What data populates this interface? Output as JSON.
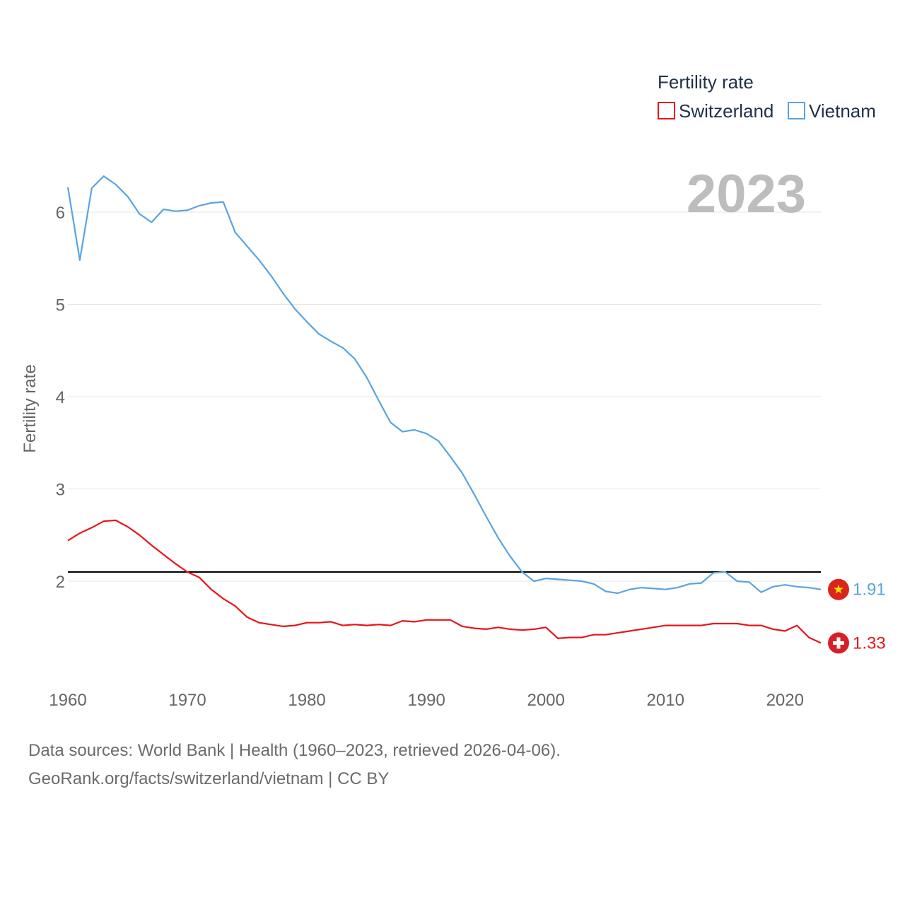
{
  "chart_data": {
    "type": "line",
    "legend_title": "Fertility rate",
    "ylabel": "Fertility rate",
    "year_watermark": "2023",
    "xlim": [
      1960,
      2023
    ],
    "ylim": [
      1.0,
      6.6
    ],
    "yticks": [
      2,
      3,
      4,
      5,
      6
    ],
    "xticks": [
      1960,
      1970,
      1980,
      1990,
      2000,
      2010,
      2020
    ],
    "reference_line": 2.1,
    "x": [
      1960,
      1961,
      1962,
      1963,
      1964,
      1965,
      1966,
      1967,
      1968,
      1969,
      1970,
      1971,
      1972,
      1973,
      1974,
      1975,
      1976,
      1977,
      1978,
      1979,
      1980,
      1981,
      1982,
      1983,
      1984,
      1985,
      1986,
      1987,
      1988,
      1989,
      1990,
      1991,
      1992,
      1993,
      1994,
      1995,
      1996,
      1997,
      1998,
      1999,
      2000,
      2001,
      2002,
      2003,
      2004,
      2005,
      2006,
      2007,
      2008,
      2009,
      2010,
      2011,
      2012,
      2013,
      2014,
      2015,
      2016,
      2017,
      2018,
      2019,
      2020,
      2021,
      2022,
      2023
    ],
    "series": [
      {
        "name": "Switzerland",
        "color": "#e8151b",
        "end_label": "1.33",
        "flag": "switzerland",
        "values": [
          2.44,
          2.52,
          2.58,
          2.65,
          2.66,
          2.59,
          2.5,
          2.39,
          2.29,
          2.19,
          2.1,
          2.04,
          1.91,
          1.81,
          1.73,
          1.61,
          1.55,
          1.53,
          1.51,
          1.52,
          1.55,
          1.55,
          1.56,
          1.52,
          1.53,
          1.52,
          1.53,
          1.52,
          1.57,
          1.56,
          1.58,
          1.58,
          1.58,
          1.51,
          1.49,
          1.48,
          1.5,
          1.48,
          1.47,
          1.48,
          1.5,
          1.38,
          1.39,
          1.39,
          1.42,
          1.42,
          1.44,
          1.46,
          1.48,
          1.5,
          1.52,
          1.52,
          1.52,
          1.52,
          1.54,
          1.54,
          1.54,
          1.52,
          1.52,
          1.48,
          1.46,
          1.52,
          1.39,
          1.33
        ]
      },
      {
        "name": "Vietnam",
        "color": "#5ba3e0",
        "end_label": "1.91",
        "flag": "vietnam",
        "values": [
          6.27,
          5.48,
          6.26,
          6.39,
          6.3,
          6.17,
          5.98,
          5.89,
          6.03,
          6.01,
          6.02,
          6.07,
          6.1,
          6.11,
          5.78,
          5.63,
          5.48,
          5.31,
          5.12,
          4.95,
          4.81,
          4.68,
          4.6,
          4.53,
          4.41,
          4.21,
          3.96,
          3.72,
          3.62,
          3.64,
          3.6,
          3.52,
          3.35,
          3.17,
          2.94,
          2.7,
          2.47,
          2.27,
          2.1,
          2.0,
          2.03,
          2.02,
          2.01,
          2.0,
          1.97,
          1.89,
          1.87,
          1.91,
          1.93,
          1.92,
          1.91,
          1.93,
          1.97,
          1.98,
          2.09,
          2.1,
          2.0,
          1.99,
          1.88,
          1.94,
          1.96,
          1.94,
          1.93,
          1.91
        ]
      }
    ]
  },
  "source": {
    "line1": "Data sources: World Bank | Health (1960–2023, retrieved 2026-04-06).",
    "line2": "GeoRank.org/facts/switzerland/vietnam | CC BY"
  }
}
